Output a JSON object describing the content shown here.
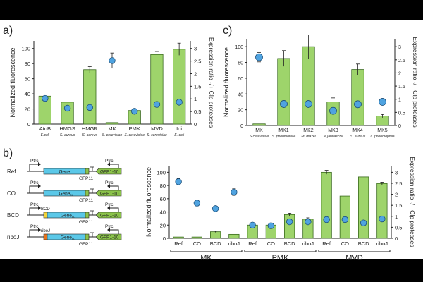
{
  "colors": {
    "bar_fill": "#9ED46B",
    "bar_stroke": "#3A6A1E",
    "dot_fill": "#4FA3E0",
    "dot_stroke": "#1B4F7A",
    "gene_blue": "#5BC8E8",
    "gfp_green": "#8BC34A",
    "bcd_yellow": "#F2D43A",
    "riboj_orange": "#E8741E",
    "background": "#FFFFFF",
    "frame": "#000000"
  },
  "chart_data": [
    {
      "panel": "a)",
      "type": "bar",
      "title": "",
      "ylabel": "Normalized fluorescence",
      "y2label": "Expression ratio -/+ Clp proteases",
      "ylim": [
        0,
        110
      ],
      "yticks": [
        0,
        20,
        40,
        60,
        80,
        100
      ],
      "y2lim": [
        0,
        3.3
      ],
      "y2ticks": [
        0,
        0.5,
        1,
        1.5,
        2,
        2.5,
        3
      ],
      "y2ticklabels": [
        "0",
        "0.5",
        "1",
        "1.5",
        "2",
        "2.5",
        "3"
      ],
      "categories": [
        "AtoB",
        "HMGS",
        "HMGR",
        "MK",
        "PMK",
        "MVD",
        "Idi"
      ],
      "sublabels": [
        "E.coli",
        "S. aureus",
        "S. aureus",
        "S. cerevisiae",
        "S. cerevisiae",
        "S. cerevisiae",
        "E. coli"
      ],
      "series": [
        {
          "name": "Normalized fluorescence",
          "axis": "left",
          "values": [
            37,
            29,
            72,
            2,
            18,
            92,
            99
          ],
          "errors": [
            0,
            0,
            4,
            0,
            2,
            4,
            8
          ]
        },
        {
          "name": "Expression ratio -/+ Clp proteases",
          "axis": "right",
          "type": "scatter",
          "values": [
            1.02,
            0.63,
            0.66,
            2.52,
            0.51,
            0.78,
            0.87
          ],
          "errors": [
            0,
            0,
            0,
            0.3,
            0,
            0,
            0.1
          ]
        }
      ]
    },
    {
      "panel": "c)",
      "type": "bar",
      "title": "",
      "ylabel": "Normalized fluorescence",
      "y2label": "Expression ratio -/+ Clp proteases",
      "ylim": [
        0,
        110
      ],
      "yticks": [
        0,
        20,
        40,
        60,
        80,
        100
      ],
      "y2lim": [
        0,
        3.3
      ],
      "y2ticks": [
        0,
        0.5,
        1,
        1.5,
        2,
        2.5,
        3
      ],
      "y2ticklabels": [
        "0",
        "0.5",
        "1",
        "1.5",
        "2",
        "2.5",
        "3"
      ],
      "categories": [
        "MK",
        "MK1",
        "MK2",
        "MK3",
        "MK4",
        "MK5"
      ],
      "sublabels": [
        "S.cerevisiae",
        "S. pneumoniae",
        "M. mazei",
        "M.jannaschii",
        "S. aureus",
        "L. pneumophila"
      ],
      "series": [
        {
          "name": "Normalized fluorescence",
          "axis": "left",
          "values": [
            2,
            85,
            100,
            30,
            71,
            12
          ],
          "errors": [
            0,
            10,
            15,
            5,
            7,
            2
          ]
        },
        {
          "name": "Expression ratio -/+ Clp proteases",
          "axis": "right",
          "type": "scatter",
          "values": [
            2.6,
            0.82,
            0.82,
            0.56,
            0.81,
            0.9
          ],
          "errors": [
            0.18,
            0,
            0,
            0.1,
            0,
            0
          ]
        }
      ]
    },
    {
      "panel": "b)",
      "type": "bar",
      "title": "",
      "ylabel": "Normalized fluorescence",
      "y2label": "Expression ratio -/+ Clp proteases",
      "ylim": [
        0,
        110
      ],
      "yticks": [
        0,
        20,
        40,
        60,
        80,
        100
      ],
      "y2lim": [
        0,
        3.3
      ],
      "y2ticks": [
        0,
        0.5,
        1,
        1.5,
        2,
        2.5,
        3
      ],
      "y2ticklabels": [
        "0",
        "0.5",
        "1",
        "1.5",
        "2",
        "2.5",
        "3"
      ],
      "categories": [
        "Ref",
        "CO",
        "BCD",
        "riboJ",
        "Ref",
        "CO",
        "BCD",
        "riboJ",
        "Ref",
        "CO",
        "BCD",
        "riboJ"
      ],
      "groups": [
        {
          "label": "MK",
          "start": 0,
          "end": 3
        },
        {
          "label": "PMK",
          "start": 4,
          "end": 7
        },
        {
          "label": "MVD",
          "start": 8,
          "end": 11
        }
      ],
      "series": [
        {
          "name": "Normalized fluorescence",
          "axis": "left",
          "values": [
            2,
            2,
            10,
            6,
            20,
            20,
            36,
            29,
            100,
            64,
            93,
            83
          ],
          "errors": [
            0,
            0,
            1,
            0,
            0,
            0,
            2,
            2,
            3,
            0,
            0,
            2
          ]
        },
        {
          "name": "Expression ratio -/+ Clp proteases",
          "axis": "right",
          "type": "scatter",
          "values": [
            2.57,
            1.6,
            1.35,
            2.1,
            0.6,
            0.57,
            0.75,
            0.75,
            0.85,
            0.85,
            0.7,
            0.88
          ],
          "errors": [
            0.15,
            0.12,
            0,
            0.15,
            0,
            0,
            0,
            0,
            0,
            0,
            0,
            0
          ]
        }
      ]
    }
  ],
  "constructs": {
    "rows": [
      {
        "label": "Ref",
        "gene_label": "Gene",
        "gene_sub": "",
        "extra_label": ""
      },
      {
        "label": "CO",
        "gene_label": "Gene",
        "gene_sub": "co",
        "extra_label": ""
      },
      {
        "label": "BCD",
        "gene_label": "Gene",
        "gene_sub": "co",
        "extra_label": "BCD"
      },
      {
        "label": "riboJ",
        "gene_label": "Gene",
        "gene_sub": "co",
        "extra_label": "riboJ"
      }
    ],
    "promoter_label": "Ptrc",
    "gfp11_label": "GFP11",
    "gfp1_10_label": "GFP1-10"
  }
}
